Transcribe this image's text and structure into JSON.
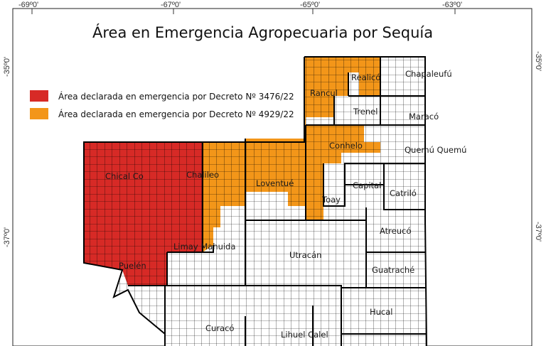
{
  "title": "Área en Emergencia Agropecuaria por Sequía",
  "coordinates": {
    "top": [
      "-69º0'",
      "-67º0'",
      "-65º0'",
      "-63º0'"
    ],
    "left": [
      "-35º0'",
      "-37º0'"
    ],
    "right": [
      "-35º0'",
      "-37º0'"
    ]
  },
  "legend": [
    {
      "label": "Área declarada en emergencia por Decreto Nº 3476/22",
      "color": "#d72a26"
    },
    {
      "label": "Área declarada en emergencia por Decreto Nº 4929/22",
      "color": "#f39619"
    }
  ],
  "departments": {
    "chical_co": "Chical Co",
    "chalileo": "Chalileo",
    "loventue": "Loventué",
    "rancul": "Rancul",
    "realico": "Realicó",
    "chapaleufu": "Chapaleufú",
    "trenel": "Trenel",
    "maraco": "Maracó",
    "conhelo": "Conhelo",
    "quemu_quemu": "Quemú Quemú",
    "capital": "Capital",
    "catrilo": "Catriló",
    "toay": "Toay",
    "atreuco": "Atreucó",
    "limay_mahuida": "Limay Mahuida",
    "utracan": "Utracán",
    "puelen": "Puelén",
    "guatrache": "Guatraché",
    "hucal": "Hucal",
    "curaco": "Curacó",
    "lihuel_calel": "Lihuel Calel"
  },
  "colors": {
    "decreto_3476": "#d72a26",
    "decreto_4929": "#f39619",
    "unaffected": "#ffffff",
    "grid_line": "#000000"
  }
}
